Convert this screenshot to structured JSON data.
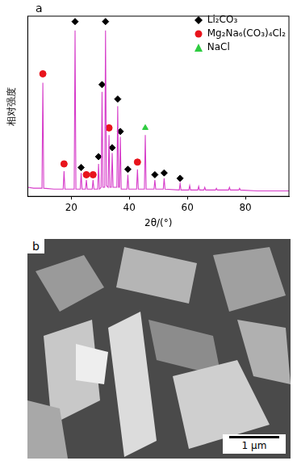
{
  "panel_labels": [
    "a",
    "b"
  ],
  "chart_data": {
    "type": "line",
    "x_label": "2θ/(°)",
    "y_label": "相对强度",
    "xlim": [
      5,
      95
    ],
    "xticks": [
      20,
      40,
      60,
      80
    ],
    "ylim": [
      0,
      100
    ],
    "tick_labels": "x",
    "grid": false,
    "legend": "upper right",
    "series": [
      {
        "type": "line",
        "color": "#d63bc9",
        "x": [
          5,
          7,
          9.9,
          10.2,
          10.5,
          14,
          17.2,
          17.5,
          17.8,
          21.0,
          21.3,
          21.6,
          23.1,
          23.4,
          23.7,
          24.9,
          25.2,
          25.5,
          27.2,
          27.5,
          27.8,
          29.1,
          29.4,
          29.7,
          30.3,
          30.6,
          30.9,
          31.5,
          31.8,
          32.1,
          32.7,
          33.0,
          33.3,
          33.8,
          34.1,
          34.4,
          35.7,
          36.0,
          36.3,
          36.6,
          36.9,
          37.2,
          39.2,
          39.5,
          39.8,
          42.5,
          42.8,
          43.1,
          45.2,
          45.5,
          45.8,
          48.5,
          48.8,
          49.1,
          51.7,
          52.0,
          52.3,
          57.2,
          57.5,
          57.8,
          60.5,
          60.8,
          61.1,
          63.6,
          63.9,
          64.2,
          65.7,
          66.0,
          66.3,
          69.7,
          70.0,
          70.3,
          74.2,
          74.5,
          74.8,
          77.7,
          78.0,
          78.3,
          84,
          90,
          95
        ],
        "values": [
          5,
          4.5,
          4.5,
          63,
          4.5,
          4,
          4,
          14,
          4,
          4,
          92,
          4,
          4,
          13,
          4,
          4,
          9,
          4,
          4,
          9,
          4,
          4,
          18,
          4,
          5,
          58,
          5,
          5,
          92,
          6,
          5,
          34,
          5,
          5,
          24,
          5,
          5,
          50,
          5,
          5,
          33,
          4,
          4,
          12,
          4,
          4,
          15,
          4,
          4,
          34,
          4,
          4,
          9,
          4,
          4,
          10,
          4,
          3.5,
          7,
          3.5,
          3.5,
          6,
          3.5,
          3.5,
          5.5,
          3.5,
          3.5,
          5,
          3.5,
          3.5,
          4.5,
          3.5,
          3.5,
          5,
          3.5,
          3.5,
          4.5,
          3.5,
          3,
          3,
          3
        ]
      },
      {
        "name": "Li₂CO₃",
        "type": "scatter",
        "marker": "diamond",
        "color": "#000000",
        "x": [
          21.3,
          23.4,
          29.4,
          30.6,
          31.8,
          34.1,
          36.0,
          36.9,
          39.5,
          48.8,
          52.0,
          57.5
        ],
        "values": [
          97,
          16,
          22,
          62,
          97,
          27,
          54,
          36,
          15,
          12,
          13,
          10
        ]
      },
      {
        "name": "Mg₂Na₆(CO₃)₄Cl₂",
        "type": "scatter",
        "marker": "circle",
        "color": "#e8141c",
        "x": [
          10.2,
          17.5,
          25.2,
          27.5,
          33.0,
          42.8
        ],
        "values": [
          68,
          18,
          12,
          12,
          38,
          19
        ]
      },
      {
        "name": "NaCl",
        "type": "scatter",
        "marker": "triangle",
        "color": "#2ecc40",
        "x": [
          45.5
        ],
        "values": [
          38
        ]
      }
    ]
  },
  "image": {
    "scale_bar": "1 μm"
  }
}
